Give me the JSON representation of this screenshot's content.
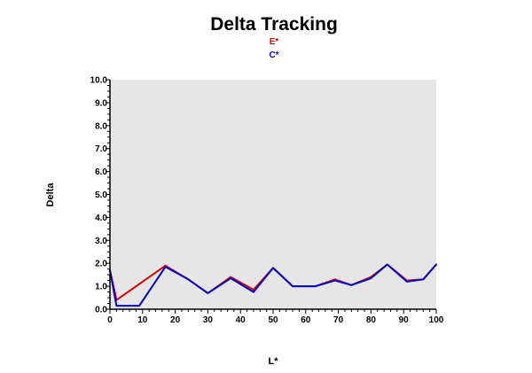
{
  "chart_data": {
    "type": "line",
    "title": "Delta Tracking",
    "xlabel": "L*",
    "ylabel": "Delta",
    "xlim": [
      0,
      100
    ],
    "ylim": [
      0,
      10
    ],
    "x_ticks": [
      "0",
      "10",
      "20",
      "30",
      "40",
      "50",
      "60",
      "70",
      "80",
      "90",
      "100"
    ],
    "y_ticks": [
      "0.0",
      "1.0",
      "2.0",
      "3.0",
      "4.0",
      "5.0",
      "6.0",
      "7.0",
      "8.0",
      "9.0",
      "10.0"
    ],
    "grid": false,
    "legend_position": "top-center",
    "plot_background": "#e6e6e6",
    "series": [
      {
        "name": "E*",
        "color": "#dd0000",
        "points": [
          [
            0,
            1.7
          ],
          [
            2,
            0.4
          ],
          [
            10,
            1.2
          ],
          [
            17,
            1.9
          ],
          [
            24,
            1.3
          ],
          [
            30,
            0.7
          ],
          [
            37,
            1.4
          ],
          [
            44,
            0.85
          ],
          [
            50,
            1.8
          ],
          [
            56,
            1.0
          ],
          [
            63,
            1.0
          ],
          [
            69,
            1.3
          ],
          [
            74,
            1.05
          ],
          [
            80,
            1.4
          ],
          [
            85,
            1.95
          ],
          [
            91,
            1.25
          ],
          [
            96,
            1.3
          ],
          [
            100,
            1.95
          ]
        ]
      },
      {
        "name": "C*",
        "color": "#0000cc",
        "points": [
          [
            0,
            1.7
          ],
          [
            2,
            0.15
          ],
          [
            9,
            0.15
          ],
          [
            17,
            1.85
          ],
          [
            24,
            1.3
          ],
          [
            30,
            0.7
          ],
          [
            37,
            1.35
          ],
          [
            44,
            0.75
          ],
          [
            50,
            1.8
          ],
          [
            56,
            1.0
          ],
          [
            63,
            1.0
          ],
          [
            69,
            1.25
          ],
          [
            74,
            1.05
          ],
          [
            80,
            1.35
          ],
          [
            85,
            1.95
          ],
          [
            91,
            1.2
          ],
          [
            96,
            1.3
          ],
          [
            100,
            1.95
          ]
        ]
      }
    ]
  }
}
